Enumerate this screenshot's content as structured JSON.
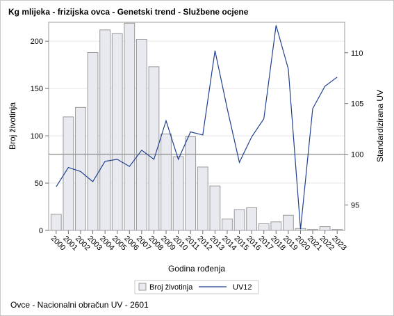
{
  "chart_data": {
    "type": "bar+line",
    "title": "Kg mlijeka - frizijska ovca - Genetski trend - Službene ocjene",
    "xlabel": "Godina rođenja",
    "ylabel_left": "Broj životinja",
    "ylabel_right": "Standardizirana UV",
    "footnote": "Ovce - Nacionalni obračun UV - 2601",
    "categories": [
      "2000",
      "2001",
      "2002",
      "2003",
      "2004",
      "2005",
      "2006",
      "2007",
      "2008",
      "2009",
      "2010",
      "2011",
      "2012",
      "2013",
      "2014",
      "2015",
      "2016",
      "2017",
      "2018",
      "2019",
      "2020",
      "2021",
      "2022",
      "2023"
    ],
    "series": [
      {
        "name": "Broj životinja",
        "type": "bar",
        "axis": "left",
        "color": "#e8eaef",
        "values": [
          17,
          120,
          130,
          188,
          212,
          208,
          219,
          202,
          173,
          102,
          78,
          99,
          67,
          47,
          12,
          22,
          24,
          7,
          9,
          16,
          2,
          1,
          4,
          1
        ]
      },
      {
        "name": "UV12",
        "type": "line",
        "axis": "right",
        "color": "#1f3f8f",
        "values": [
          96.8,
          98.7,
          98.3,
          97.3,
          99.3,
          99.5,
          98.8,
          100.4,
          99.5,
          103.3,
          99.5,
          102.2,
          101.9,
          110.2,
          104.5,
          99.2,
          101.7,
          103.5,
          112.7,
          108.4,
          92.6,
          104.5,
          106.7,
          107.6
        ]
      }
    ],
    "ylim_left": [
      0,
      220
    ],
    "ylim_right": [
      92.5,
      113
    ],
    "yticks_left": [
      0,
      50,
      100,
      150,
      200
    ],
    "yticks_right": [
      95,
      100,
      105,
      110
    ],
    "reference_line_right": 100,
    "grid": true,
    "legend_position": "bottom-center"
  }
}
